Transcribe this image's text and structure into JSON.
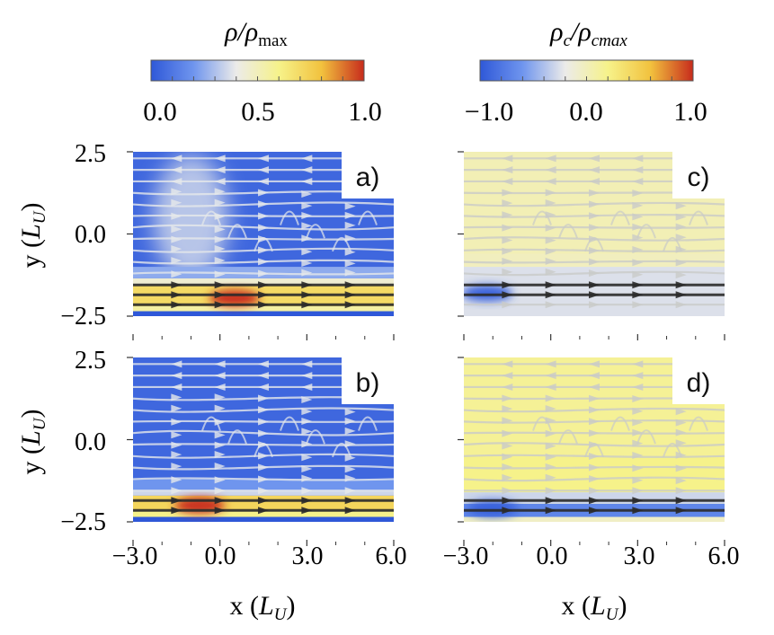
{
  "chart_data": {
    "type": "heatmap",
    "description": "Four streamline density maps, 2x2 grid",
    "colorbars": [
      {
        "id": "rho",
        "label_main": "ρ/ρ",
        "label_sub": "max",
        "range": [
          0.0,
          1.0
        ],
        "tick_labels": [
          "0.0",
          "0.5",
          "1.0"
        ],
        "tick_values": [
          0.0,
          0.5,
          1.0
        ],
        "colors": [
          "#2f58d8",
          "#6f95ee",
          "#ecebe9",
          "#f6f28a",
          "#f2c23e",
          "#c72b1c"
        ]
      },
      {
        "id": "rho_c",
        "label_main": "ρ",
        "label_sub": "c",
        "label_mid": "/ρ",
        "label_sub2": "cmax",
        "range": [
          -1.0,
          1.0
        ],
        "tick_labels": [
          "−1.0",
          "0.0",
          "1.0"
        ],
        "tick_values": [
          -1.0,
          0.0,
          1.0
        ],
        "colors": [
          "#2f58d8",
          "#6f95ee",
          "#ecebe9",
          "#f6f28a",
          "#f2c23e",
          "#c72b1c"
        ]
      }
    ],
    "x_axis": {
      "label_main": "x (",
      "label_var": "L",
      "label_sub": "U",
      "label_end": ")",
      "range": [
        -3.0,
        6.0
      ],
      "tick_labels": [
        "−3.0",
        "0.0",
        "3.0",
        "6.0"
      ],
      "tick_values": [
        -3.0,
        0.0,
        3.0,
        6.0
      ]
    },
    "y_axis": {
      "label_main": "y (",
      "label_var": "L",
      "label_sub": "U",
      "label_end": ")",
      "range": [
        -2.5,
        2.5
      ],
      "tick_labels": [
        "2.5",
        "0.0",
        "−2.5"
      ],
      "tick_values": [
        2.5,
        0.0,
        -2.5
      ]
    },
    "panels": [
      {
        "id": "a",
        "label": "a)",
        "colorbar": "rho",
        "background": 0.05,
        "bands": [
          {
            "y0": -2.5,
            "y1": -2.35,
            "value": 0.0
          },
          {
            "y0": -2.35,
            "y1": -2.2,
            "value": 0.55
          },
          {
            "y0": -2.2,
            "y1": -1.55,
            "value": 0.7
          },
          {
            "y0": -1.55,
            "y1": -1.35,
            "value": 0.45
          },
          {
            "y0": -1.35,
            "y1": -1.0,
            "value": 0.25
          }
        ],
        "hotspot": {
          "x": 0.5,
          "y": -1.95,
          "value": 1.0
        },
        "plume": {
          "x": -1.0,
          "y": 0.5,
          "value": 0.35
        },
        "stream_rows": [
          2.3,
          1.95,
          1.6,
          1.25,
          0.9,
          0.55,
          0.2,
          -0.15,
          -0.5,
          -0.85,
          -1.2,
          -1.55,
          -1.85,
          -2.15
        ],
        "dark_rows": [
          -1.55,
          -1.85,
          -2.15
        ]
      },
      {
        "id": "b",
        "label": "b)",
        "colorbar": "rho",
        "background": 0.05,
        "bands": [
          {
            "y0": -2.5,
            "y1": -2.35,
            "value": 0.0
          },
          {
            "y0": -2.35,
            "y1": -2.15,
            "value": 0.6
          },
          {
            "y0": -2.15,
            "y1": -1.7,
            "value": 0.72
          },
          {
            "y0": -1.7,
            "y1": -1.55,
            "value": 0.35
          },
          {
            "y0": -1.55,
            "y1": -1.2,
            "value": 0.2
          }
        ],
        "hotspot": {
          "x": -0.7,
          "y": -2.0,
          "value": 1.0
        },
        "plume": null,
        "stream_rows": [
          2.3,
          1.95,
          1.6,
          1.25,
          0.9,
          0.55,
          0.2,
          -0.15,
          -0.5,
          -0.85,
          -1.2,
          -1.55,
          -1.85,
          -2.15
        ],
        "dark_rows": [
          -1.85,
          -2.15
        ]
      },
      {
        "id": "c",
        "label": "c)",
        "colorbar": "rho_c",
        "background": -0.02,
        "bands": [
          {
            "y0": -2.5,
            "y1": -1.0,
            "value": -0.25
          },
          {
            "y0": -0.6,
            "y1": 2.5,
            "value": 0.02
          }
        ],
        "hotspot": {
          "x": -2.2,
          "y": -1.8,
          "value": -0.95
        },
        "plume": null,
        "stream_rows": [
          2.3,
          1.95,
          1.6,
          1.25,
          0.9,
          0.55,
          0.2,
          -0.15,
          -0.5,
          -0.85,
          -1.2,
          -1.55,
          -1.85,
          -2.15
        ],
        "dark_rows": [
          -1.55,
          -1.85
        ]
      },
      {
        "id": "d",
        "label": "d)",
        "colorbar": "rho_c",
        "background": 0.15,
        "bands": [
          {
            "y0": -2.5,
            "y1": -2.35,
            "value": -0.05
          },
          {
            "y0": -2.35,
            "y1": -1.95,
            "value": -0.7
          },
          {
            "y0": -1.95,
            "y1": -1.6,
            "value": -0.3
          },
          {
            "y0": -1.6,
            "y1": -0.5,
            "value": 0.2
          }
        ],
        "hotspot": {
          "x": -2.0,
          "y": -2.1,
          "value": -0.95
        },
        "plume": null,
        "stream_rows": [
          2.3,
          1.95,
          1.6,
          1.25,
          0.9,
          0.55,
          0.2,
          -0.15,
          -0.5,
          -0.85,
          -1.2,
          -1.55,
          -1.85,
          -2.15
        ],
        "dark_rows": [
          -1.85,
          -2.15
        ]
      }
    ]
  }
}
